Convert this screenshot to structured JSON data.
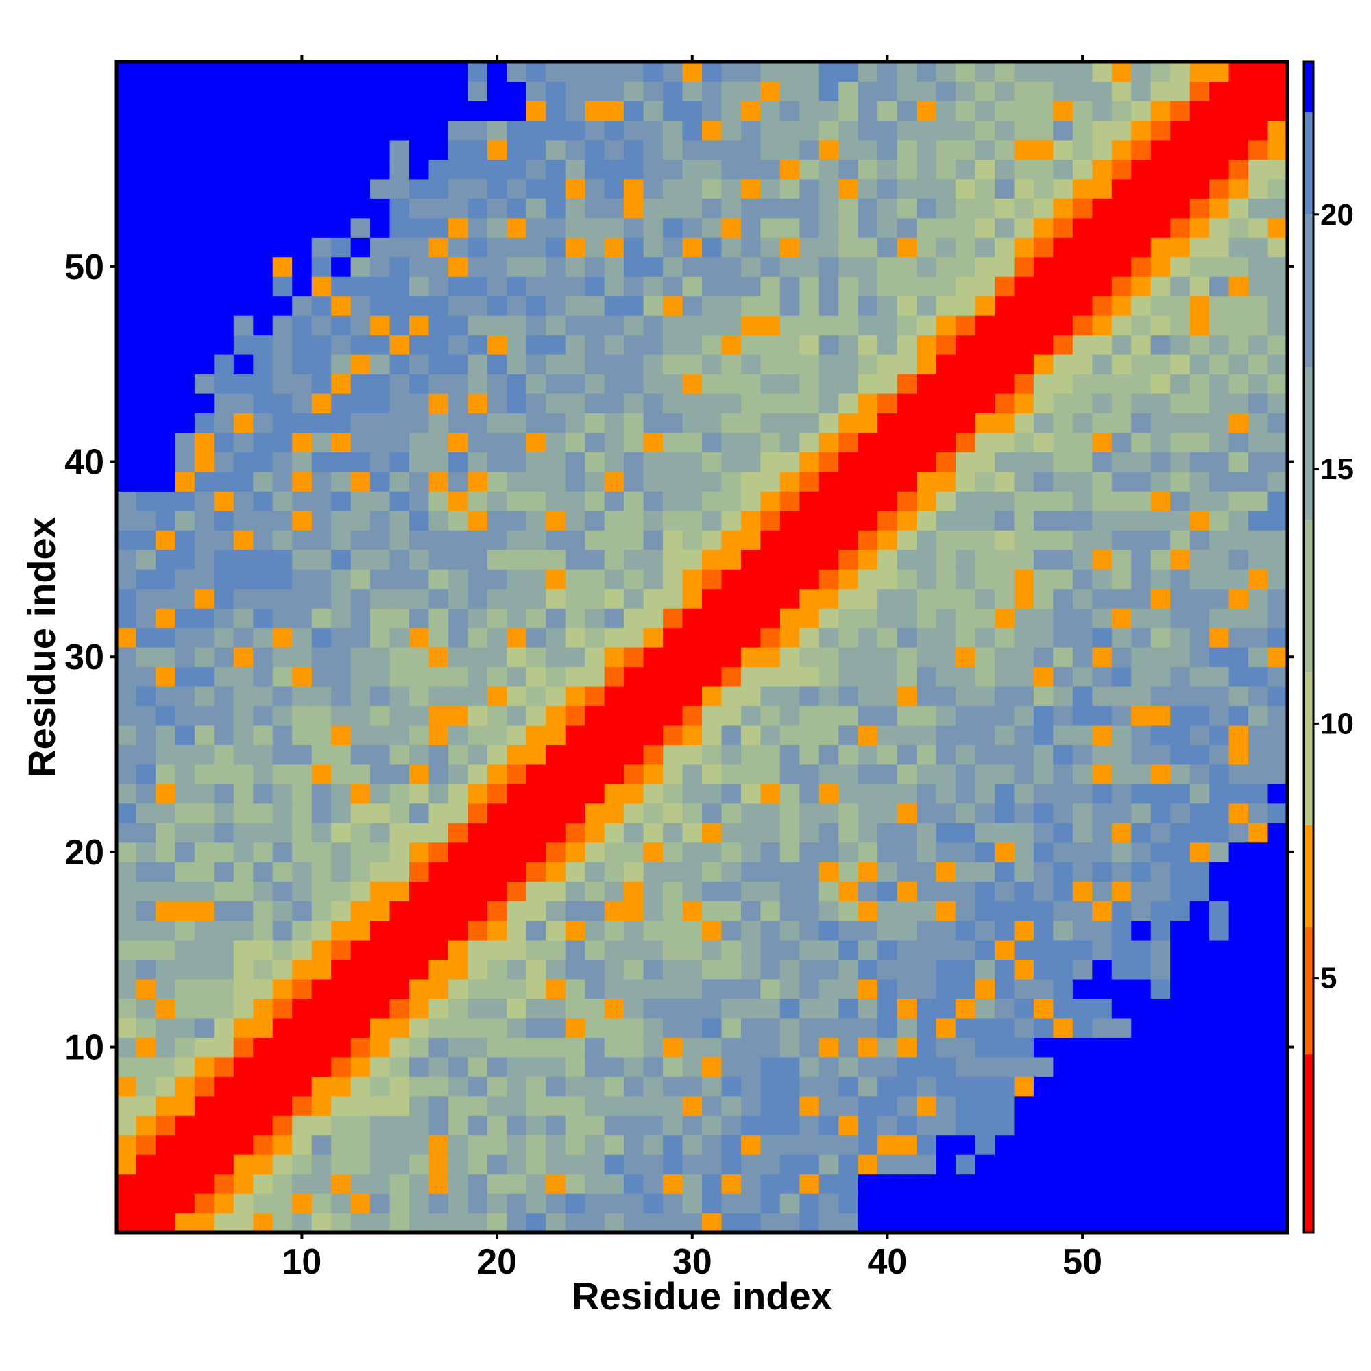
{
  "chart_data": {
    "type": "heatmap",
    "title": "",
    "xlabel": "Residue index",
    "ylabel": "Residue index",
    "xlim": [
      1,
      60
    ],
    "ylim": [
      1,
      60
    ],
    "xticks": [
      10,
      20,
      30,
      40,
      50
    ],
    "yticks": [
      10,
      20,
      30,
      40,
      50
    ],
    "n_residues": 60,
    "colorbar": {
      "ticks": [
        5,
        10,
        15,
        20
      ],
      "range": [
        0,
        23
      ],
      "colors": [
        {
          "from": 0,
          "to": 3.5,
          "color": "#ff0000"
        },
        {
          "from": 3.5,
          "to": 6,
          "color": "#ff6600"
        },
        {
          "from": 6,
          "to": 8,
          "color": "#ff9900"
        },
        {
          "from": 8,
          "to": 11,
          "color": "#b8c88a"
        },
        {
          "from": 11,
          "to": 14,
          "color": "#a3bc96"
        },
        {
          "from": 14,
          "to": 17,
          "color": "#8fa9a4"
        },
        {
          "from": 17,
          "to": 20,
          "color": "#7896b4"
        },
        {
          "from": 20,
          "to": 22,
          "color": "#5f88c0"
        },
        {
          "from": 22,
          "to": 23,
          "color": "#0000ff"
        }
      ]
    }
  }
}
